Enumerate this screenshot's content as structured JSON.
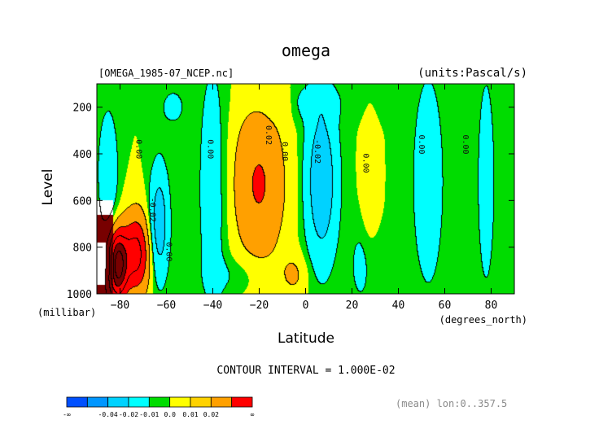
{
  "chart_data": {
    "type": "heatmap",
    "variant": "filled-contour",
    "title": "omega",
    "file_label": "[OMEGA_1985-07_NCEP.nc]",
    "units_label": "(units:Pascal/s)",
    "xlabel": "Latitude",
    "x_units": "(degrees_north)",
    "ylabel": "Level",
    "y_units": "(millibar)",
    "xlim": [
      -90,
      90
    ],
    "ylim": [
      1000,
      100
    ],
    "x_ticks": [
      -80,
      -60,
      -40,
      -20,
      0,
      20,
      40,
      60,
      80
    ],
    "y_ticks": [
      200,
      400,
      600,
      800,
      1000
    ],
    "contour_interval_label": "CONTOUR INTERVAL = 1.000E-02",
    "footer_label": "(mean) lon:0..357.5",
    "colorbar": {
      "colors": [
        "#0050ff",
        "#0096ff",
        "#00d2ff",
        "#00ffff",
        "#00dc00",
        "#ffff00",
        "#ffd200",
        "#ffa000",
        "#ff0000"
      ],
      "tick_labels": [
        "-∞",
        "-0.04",
        "-0.02",
        "-0.01",
        "0.0",
        "0.01",
        "0.02",
        "∞"
      ]
    },
    "contour_labels": [
      {
        "text": "0.00",
        "lat": -72,
        "lev": 380
      },
      {
        "text": "-0.02",
        "lat": -66,
        "lev": 640
      },
      {
        "text": "0.00",
        "lat": -59,
        "lev": 820
      },
      {
        "text": "0.00",
        "lat": -41,
        "lev": 380
      },
      {
        "text": "0.02",
        "lat": -16,
        "lev": 320
      },
      {
        "text": "0.00",
        "lat": -9,
        "lev": 390
      },
      {
        "text": "-0.02",
        "lat": 5,
        "lev": 390
      },
      {
        "text": "0.00",
        "lat": 26,
        "lev": 440
      },
      {
        "text": "0.00",
        "lat": 50,
        "lev": 360
      },
      {
        "text": "0.00",
        "lat": 69,
        "lev": 360
      }
    ]
  }
}
